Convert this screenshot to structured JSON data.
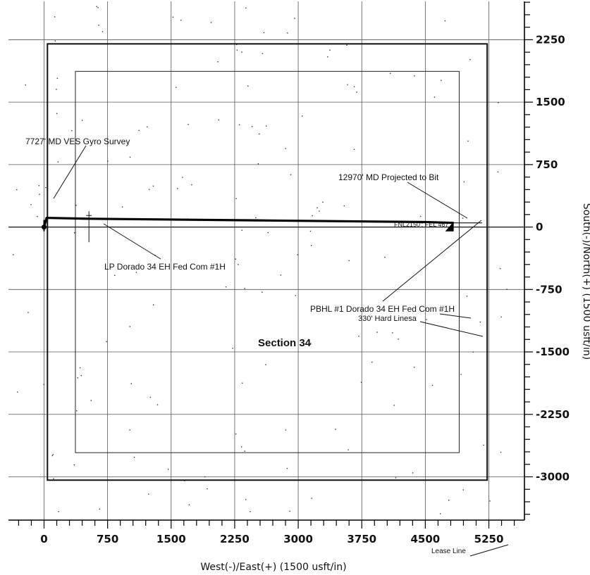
{
  "plan": {
    "x_axis_title": "West(-)/East(+) (1500 usft/in)",
    "y_axis_title": "South(-)/North(+) (1500 usft/in)",
    "x_ticks": [
      0,
      750,
      1500,
      2250,
      3000,
      3750,
      4500,
      5250
    ],
    "y_ticks": [
      2250,
      1500,
      750,
      0,
      -750,
      -1500,
      -2250,
      -3000
    ],
    "section_label": "Section 34",
    "callouts": {
      "gyro_survey": "7727' MD VES Gyro Survey",
      "projected_to_bit": "12970' MD Projected to Bit",
      "landing_point": "LP Dorado 34 EH Fed Com #1H",
      "pbhl_target": "PBHL #1 Dorado 34 EH Fed Com #1H",
      "footage": "FNL2150'; FEL 467'",
      "hard_lines": "330' Hard Linesa",
      "lease_line": "Lease Line"
    }
  },
  "chart_data": {
    "type": "scatter",
    "xlabel": "West(-)/East(+) (1500 usft/in)",
    "ylabel": "South(-)/North(+) (1500 usft/in)",
    "xlim": [
      -420,
      5670
    ],
    "ylim": [
      -3520,
      2710
    ],
    "grid": true,
    "lease_boundary": {
      "x": [
        40,
        5230
      ],
      "y": [
        -3040,
        2200
      ]
    },
    "hard_lines_boundary": {
      "x": [
        370,
        4900
      ],
      "y": [
        -2710,
        1870
      ]
    },
    "wellbore_path": {
      "x": [
        0,
        30,
        500,
        1500,
        2500,
        3500,
        4500,
        4835
      ],
      "y": [
        0,
        110,
        100,
        90,
        80,
        70,
        60,
        50
      ]
    },
    "section_line_y": 0,
    "landing_point": {
      "x": 530,
      "y": 20
    },
    "pbhl": {
      "x": 4810,
      "y": -10
    }
  }
}
